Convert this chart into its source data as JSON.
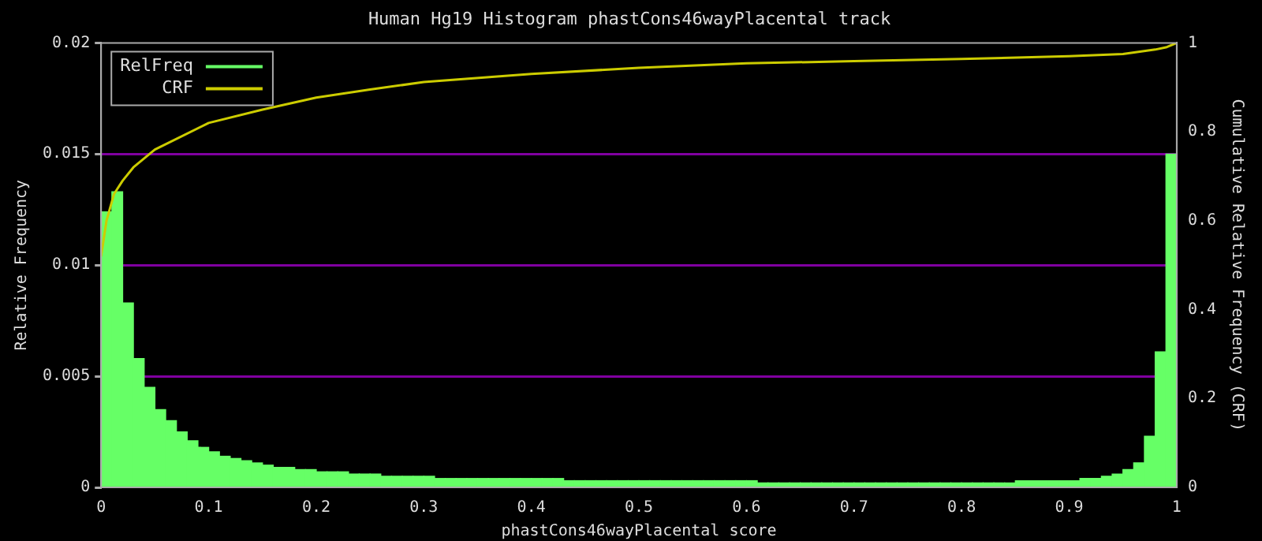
{
  "chart_data": {
    "type": "histogram",
    "title": "Human Hg19 Histogram phastCons46wayPlacental track",
    "xlabel": "phastCons46wayPlacental score",
    "ylabel": "Relative Frequency",
    "y2label": "Cumulative Relative Frequency (CRF)",
    "bins": [
      0,
      0.01,
      0.02,
      0.03,
      0.04,
      0.05,
      0.06,
      0.07,
      0.08,
      0.09,
      0.1,
      0.11,
      0.12,
      0.13,
      0.14,
      0.15,
      0.16,
      0.17,
      0.18,
      0.19,
      0.2,
      0.21,
      0.22,
      0.23,
      0.24,
      0.25,
      0.26,
      0.27,
      0.28,
      0.29,
      0.3,
      0.31,
      0.32,
      0.33,
      0.34,
      0.35,
      0.36,
      0.37,
      0.38,
      0.39,
      0.4,
      0.41,
      0.42,
      0.43,
      0.44,
      0.45,
      0.46,
      0.47,
      0.48,
      0.49,
      0.5,
      0.51,
      0.52,
      0.53,
      0.54,
      0.55,
      0.56,
      0.57,
      0.58,
      0.59,
      0.6,
      0.61,
      0.62,
      0.63,
      0.64,
      0.65,
      0.66,
      0.67,
      0.68,
      0.69,
      0.7,
      0.71,
      0.72,
      0.73,
      0.74,
      0.75,
      0.76,
      0.77,
      0.78,
      0.79,
      0.8,
      0.81,
      0.82,
      0.83,
      0.84,
      0.85,
      0.86,
      0.87,
      0.88,
      0.89,
      0.9,
      0.91,
      0.92,
      0.93,
      0.94,
      0.95,
      0.96,
      0.97,
      0.98,
      0.99,
      1
    ],
    "series": [
      {
        "name": "RelFreq",
        "color": "#66ff66",
        "values": [
          0.0124,
          0.0133,
          0.0083,
          0.0058,
          0.0045,
          0.0035,
          0.003,
          0.0025,
          0.0021,
          0.0018,
          0.0016,
          0.0014,
          0.0013,
          0.0012,
          0.0011,
          0.001,
          0.0009,
          0.0009,
          0.0008,
          0.0008,
          0.0007,
          0.0007,
          0.0007,
          0.0006,
          0.0006,
          0.0006,
          0.0005,
          0.0005,
          0.0005,
          0.0005,
          0.0005,
          0.0004,
          0.0004,
          0.0004,
          0.0004,
          0.0004,
          0.0004,
          0.0004,
          0.0004,
          0.0004,
          0.0004,
          0.0004,
          0.0004,
          0.0003,
          0.0003,
          0.0003,
          0.0003,
          0.0003,
          0.0003,
          0.0003,
          0.0003,
          0.0003,
          0.0003,
          0.0003,
          0.0003,
          0.0003,
          0.0003,
          0.0003,
          0.0003,
          0.0003,
          0.0003,
          0.0002,
          0.0002,
          0.0002,
          0.0002,
          0.0002,
          0.0002,
          0.0002,
          0.0002,
          0.0002,
          0.0002,
          0.0002,
          0.0002,
          0.0002,
          0.0002,
          0.0002,
          0.0002,
          0.0002,
          0.0002,
          0.0002,
          0.0002,
          0.0002,
          0.0002,
          0.0002,
          0.0002,
          0.0003,
          0.0003,
          0.0003,
          0.0003,
          0.0003,
          0.0003,
          0.0004,
          0.0004,
          0.0005,
          0.0006,
          0.0008,
          0.0011,
          0.0023,
          0.0061,
          0.015
        ]
      },
      {
        "name": "CRF",
        "type": "line",
        "axis": "y2",
        "color": "#cccc00",
        "x": [
          0,
          0.005,
          0.012,
          0.02,
          0.03,
          0.05,
          0.1,
          0.15,
          0.2,
          0.25,
          0.3,
          0.4,
          0.5,
          0.6,
          0.7,
          0.8,
          0.9,
          0.95,
          0.98,
          0.99,
          1
        ],
        "values": [
          0.52,
          0.6,
          0.66,
          0.69,
          0.72,
          0.76,
          0.82,
          0.85,
          0.877,
          0.895,
          0.912,
          0.93,
          0.944,
          0.954,
          0.959,
          0.964,
          0.97,
          0.975,
          0.985,
          0.99,
          1
        ]
      }
    ],
    "xlim": [
      0,
      1
    ],
    "xticks": [
      0,
      0.1,
      0.2,
      0.3,
      0.4,
      0.5,
      0.6,
      0.7,
      0.8,
      0.9,
      1
    ],
    "ylim": [
      0,
      0.02
    ],
    "yticks": [
      0,
      0.005,
      0.01,
      0.015,
      0.02
    ],
    "y2lim": [
      0,
      1
    ],
    "y2ticks": [
      0,
      0.2,
      0.4,
      0.6,
      0.8,
      1
    ],
    "grid": "y",
    "legend": "top left",
    "marker": "none",
    "line_style": "solid"
  }
}
